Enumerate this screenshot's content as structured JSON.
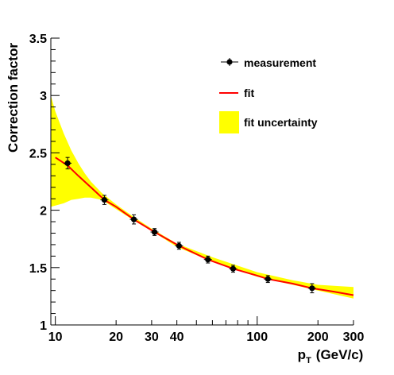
{
  "chart_data": {
    "type": "scatter",
    "title": "",
    "xlabel": "p",
    "xlabel_sub": "T",
    "xlabel_unit": "(GeV/c)",
    "ylabel": "Correction factor",
    "x_scale": "log",
    "xlim": [
      9.5,
      300
    ],
    "ylim": [
      1,
      3.5
    ],
    "x_ticks": [
      10,
      20,
      30,
      40,
      100,
      200,
      300
    ],
    "x_tick_labels": [
      "10",
      "20",
      "30",
      "40",
      "100",
      "200",
      "300"
    ],
    "y_ticks": [
      1,
      1.5,
      2,
      2.5,
      3,
      3.5
    ],
    "y_tick_labels": [
      "1",
      "1.5",
      "2",
      "2.5",
      "3",
      "3.5"
    ],
    "grid": false,
    "legend_position": "top-right",
    "legend": [
      {
        "label": "measurement",
        "kind": "marker",
        "color": "#000000"
      },
      {
        "label": "fit",
        "kind": "line",
        "color": "#ff0000"
      },
      {
        "label": "fit uncertainty",
        "kind": "band",
        "color": "#ffff00"
      }
    ],
    "series": [
      {
        "name": "measurement",
        "kind": "points",
        "x": [
          11.5,
          17.5,
          24.5,
          31.0,
          41.0,
          57.0,
          76.0,
          113.0,
          187.0
        ],
        "y": [
          2.41,
          2.09,
          1.92,
          1.81,
          1.69,
          1.57,
          1.49,
          1.4,
          1.32
        ],
        "yerr": [
          0.05,
          0.04,
          0.04,
          0.03,
          0.03,
          0.03,
          0.03,
          0.03,
          0.04
        ]
      },
      {
        "name": "fit",
        "kind": "line",
        "x": [
          10,
          11.5,
          13,
          15,
          17.5,
          20,
          24.5,
          31,
          41,
          57,
          76,
          100,
          113,
          150,
          187,
          240,
          300
        ],
        "y": [
          2.46,
          2.39,
          2.3,
          2.2,
          2.09,
          2.03,
          1.92,
          1.81,
          1.69,
          1.57,
          1.49,
          1.43,
          1.4,
          1.36,
          1.32,
          1.29,
          1.26
        ]
      },
      {
        "name": "fit uncertainty",
        "kind": "band",
        "x": [
          9.5,
          10,
          11,
          12,
          13,
          14,
          15,
          17,
          20,
          25,
          30,
          40,
          60,
          100,
          150,
          200,
          300
        ],
        "y_low": [
          2.03,
          2.04,
          2.06,
          2.09,
          2.1,
          2.11,
          2.11,
          2.09,
          2.01,
          1.9,
          1.82,
          1.68,
          1.55,
          1.42,
          1.35,
          1.3,
          1.23
        ],
        "y_high": [
          3.0,
          2.86,
          2.67,
          2.52,
          2.41,
          2.32,
          2.25,
          2.15,
          2.05,
          1.93,
          1.84,
          1.71,
          1.59,
          1.46,
          1.39,
          1.35,
          1.33
        ]
      }
    ]
  }
}
